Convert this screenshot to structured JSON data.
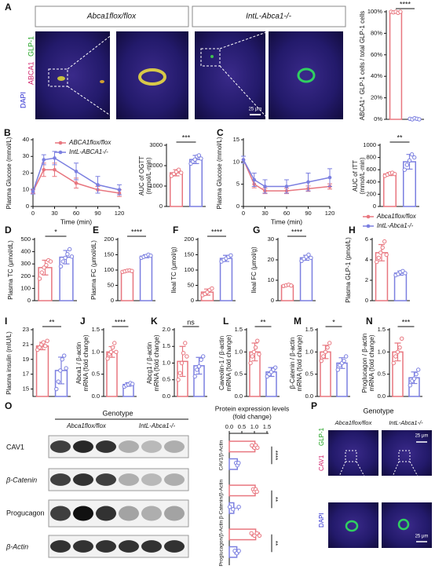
{
  "figure": {
    "panel_labels": [
      "A",
      "O",
      "P"
    ],
    "a_headers": [
      "Abca1flox/flox",
      "IntL-Abca1-/-"
    ],
    "a_stain": [
      "DAPI",
      "ABCA1",
      "GLP-1"
    ],
    "a_scale": "25 μm",
    "o_genotype": "Genotype",
    "o_groups": [
      "Abca1flox/flox",
      "IntL-Abca1-/-"
    ],
    "o_bands": [
      "CAV1",
      "β-Catenin",
      "Progucagon",
      "β-Actin"
    ],
    "p_genotype": "Genotype",
    "p_groups": [
      "Abca1flox/flox",
      "IntL-Abca1-/-"
    ],
    "p_stain_top": [
      "CAV1",
      "GLP-1"
    ],
    "p_stain_bottom": [
      "DAPI"
    ],
    "p_scale": [
      "25 μm",
      "25 μm"
    ]
  },
  "chart_data": [
    {
      "type": "bar",
      "ylabel": [
        "ABCA1⁺ GLP-1 cells / total GLP-1 cells"
      ],
      "colors": [
        "#e8767f",
        "#7b7fe0"
      ],
      "values": [
        100,
        0.5
      ],
      "errors": [
        0.5,
        0.3
      ],
      "points": [
        [
          100,
          99.5,
          100,
          99,
          100
        ],
        [
          0.5,
          0,
          1,
          0.5,
          0
        ]
      ],
      "ylim": [
        0,
        100
      ],
      "yticks": [
        {
          "value": 0,
          "label": "0%"
        },
        {
          "value": 20,
          "label": "20%"
        },
        {
          "value": 40,
          "label": "40%"
        },
        {
          "value": 60,
          "label": "60%"
        },
        {
          "value": 80,
          "label": "80%"
        },
        {
          "value": 100,
          "label": "100%"
        }
      ],
      "significance": "****"
    },
    {
      "type": "line",
      "label": "B",
      "ylabel": [
        "Plasma Glucose (mmol/L)"
      ],
      "xlabel": "Time (min)",
      "legend": "upper center",
      "x": [
        0,
        15,
        30,
        60,
        90,
        120
      ],
      "xlim": [
        0,
        120
      ],
      "xticks": [
        0,
        30,
        60,
        90,
        120
      ],
      "ylim": [
        0,
        40
      ],
      "yticks": [
        0,
        10,
        20,
        30,
        40
      ],
      "series": [
        {
          "name": "ABCA1flox/flox",
          "color": "#e8767f",
          "values": [
            9,
            22,
            22,
            14,
            10,
            8
          ],
          "errors": [
            1,
            4,
            4,
            3,
            2,
            2
          ]
        },
        {
          "name": "IntL-ABCA1-/-",
          "color": "#7b7fe0",
          "values": [
            9,
            28,
            29,
            21,
            13,
            10
          ],
          "errors": [
            1.5,
            3,
            4,
            5,
            5,
            3
          ]
        }
      ]
    },
    {
      "type": "bar",
      "ylabel": [
        "AUC of OGTT",
        "(mmol/L·min)"
      ],
      "colors": [
        "#e8767f",
        "#7b7fe0"
      ],
      "values": [
        1650,
        2300
      ],
      "errors": [
        150,
        200
      ],
      "points": [
        [
          1500,
          1600,
          1700,
          1800,
          1650
        ],
        [
          2100,
          2200,
          2300,
          2450,
          2500,
          2350
        ]
      ],
      "ylim": [
        0,
        3000
      ],
      "yticks": [
        0,
        1000,
        2000,
        3000
      ],
      "significance": "***"
    },
    {
      "type": "line",
      "label": "C",
      "ylabel": [
        "Plasma Glucose (mmol/L)"
      ],
      "xlabel": "Time (min)",
      "legend": "lower right outside",
      "x": [
        0,
        15,
        30,
        60,
        90,
        120
      ],
      "xlim": [
        0,
        120
      ],
      "xticks": [
        0,
        30,
        60,
        90,
        120
      ],
      "ylim": [
        0,
        15
      ],
      "yticks": [
        0,
        5,
        10,
        15
      ],
      "series": [
        {
          "name": "Abca1flox/flox",
          "color": "#e8767f",
          "values": [
            10.5,
            5,
            3.5,
            3.5,
            4,
            4.5
          ],
          "errors": [
            0.8,
            0.8,
            0.6,
            0.6,
            0.6,
            0.6
          ]
        },
        {
          "name": "IntL-Abca1-/-",
          "color": "#7b7fe0",
          "values": [
            10.5,
            6,
            4.5,
            4.5,
            5.5,
            6.5
          ],
          "errors": [
            0.8,
            1.5,
            1.5,
            1.5,
            2,
            2
          ]
        }
      ]
    },
    {
      "type": "bar",
      "ylabel": [
        "AUC of ITT",
        "(mmol/L·min)"
      ],
      "colors": [
        "#e8767f",
        "#7b7fe0"
      ],
      "values": [
        530,
        730
      ],
      "errors": [
        25,
        120
      ],
      "points": [
        [
          500,
          520,
          540,
          550,
          530
        ],
        [
          600,
          680,
          750,
          850,
          800
        ]
      ],
      "ylim": [
        0,
        1000
      ],
      "yticks": [
        0,
        200,
        400,
        600,
        800,
        1000
      ],
      "significance": "**"
    },
    {
      "type": "bar",
      "label": "D",
      "ylabel": [
        "Plasma TC (μmol/dL)"
      ],
      "colors": [
        "#e8767f",
        "#7b7fe0"
      ],
      "values": [
        270,
        355
      ],
      "errors": [
        60,
        55
      ],
      "points": [
        [
          180,
          230,
          270,
          290,
          330,
          320
        ],
        [
          280,
          320,
          350,
          380,
          420,
          360
        ]
      ],
      "ylim": [
        0,
        500
      ],
      "yticks": [
        0,
        100,
        200,
        300,
        400,
        500
      ],
      "significance": "*"
    },
    {
      "type": "bar",
      "label": "E",
      "ylabel": [
        "Plasma FC (μmol/dL)"
      ],
      "colors": [
        "#e8767f",
        "#7b7fe0"
      ],
      "values": [
        97,
        145
      ],
      "errors": [
        3,
        5
      ],
      "points": [
        [
          94,
          96,
          98,
          99,
          97
        ],
        [
          140,
          143,
          146,
          150,
          147
        ]
      ],
      "ylim": [
        0,
        200
      ],
      "yticks": [
        0,
        50,
        100,
        150,
        200
      ],
      "significance": "****"
    },
    {
      "type": "bar",
      "label": "F",
      "ylabel": [
        "Ileal TC (μmol/g)"
      ],
      "colors": [
        "#e8767f",
        "#7b7fe0"
      ],
      "values": [
        28,
        138
      ],
      "errors": [
        10,
        10
      ],
      "points": [
        [
          18,
          22,
          28,
          35,
          40
        ],
        [
          128,
          133,
          138,
          143,
          148
        ]
      ],
      "ylim": [
        0,
        200
      ],
      "yticks": [
        0,
        50,
        100,
        150,
        200
      ],
      "significance": "****"
    },
    {
      "type": "bar",
      "label": "G",
      "ylabel": [
        "Ileal FC (μmol/g)"
      ],
      "colors": [
        "#e8767f",
        "#7b7fe0"
      ],
      "values": [
        7.5,
        21
      ],
      "errors": [
        0.4,
        1.2
      ],
      "points": [
        [
          7.2,
          7.5,
          7.8,
          7.4
        ],
        [
          19.5,
          20.5,
          21.5,
          22.5,
          21
        ]
      ],
      "ylim": [
        0,
        30
      ],
      "yticks": [
        0,
        10,
        20,
        30
      ],
      "significance": "****"
    },
    {
      "type": "bar",
      "label": "H",
      "ylabel": [
        "Plasma GLP-1 (pmol/L)"
      ],
      "colors": [
        "#e8767f",
        "#7b7fe0"
      ],
      "values": [
        4.7,
        2.7
      ],
      "errors": [
        0.8,
        0.2
      ],
      "points": [
        [
          3.8,
          4.2,
          4.7,
          5.2,
          5.8,
          4.5
        ],
        [
          2.5,
          2.6,
          2.8,
          2.9,
          2.7
        ]
      ],
      "ylim": [
        0,
        6
      ],
      "yticks": [
        0,
        2,
        4,
        6
      ]
    },
    {
      "type": "bar",
      "label": "I",
      "ylabel": [
        "Plasma insulin (mIU/L)"
      ],
      "colors": [
        "#e8767f",
        "#7b7fe0"
      ],
      "values": [
        20.8,
        17.5
      ],
      "errors": [
        0.5,
        1.8
      ],
      "points": [
        [
          20.3,
          20.6,
          21,
          21.3,
          20.8,
          21.5
        ],
        [
          15,
          16,
          17.5,
          19,
          19.5,
          17.8
        ]
      ],
      "ylim": [
        14,
        23
      ],
      "yticks": [
        15,
        17,
        19,
        21,
        23
      ],
      "significance": "**"
    },
    {
      "type": "bar",
      "label": "J",
      "ylabel": [
        "Abca1 / β-actin",
        "mRNA (fold change)"
      ],
      "colors": [
        "#e8767f",
        "#7b7fe0"
      ],
      "values": [
        1.0,
        0.27
      ],
      "errors": [
        0.12,
        0.04
      ],
      "points": [
        [
          0.85,
          0.95,
          1.0,
          1.1,
          1.2,
          1.0
        ],
        [
          0.22,
          0.25,
          0.27,
          0.3,
          0.28
        ]
      ],
      "ylim": [
        0,
        1.5
      ],
      "yticks": [
        {
          "value": 0,
          "label": "0.0"
        },
        0.5,
        {
          "value": 1,
          "label": "1.0"
        },
        1.5
      ],
      "significance": "****"
    },
    {
      "type": "bar",
      "label": "K",
      "ylabel": [
        "Abcg1 / β-actin",
        "mRNA (fold change)"
      ],
      "colors": [
        "#e8767f",
        "#7b7fe0"
      ],
      "values": [
        1.05,
        0.92
      ],
      "errors": [
        0.45,
        0.25
      ],
      "points": [
        [
          0.5,
          0.7,
          1.0,
          1.3,
          1.6,
          1.2
        ],
        [
          0.6,
          0.8,
          0.9,
          1.1,
          1.2
        ]
      ],
      "ylim": [
        0,
        2
      ],
      "yticks": [
        {
          "value": 0,
          "label": "0.0"
        },
        0.5,
        {
          "value": 1,
          "label": "1.0"
        },
        1.5,
        {
          "value": 2,
          "label": "2.0"
        }
      ],
      "significance": "ns"
    },
    {
      "type": "bar",
      "label": "L",
      "ylabel": [
        "Caveolin-1 / β-actin",
        "mRNA (fold change)"
      ],
      "colors": [
        "#e8767f",
        "#7b7fe0"
      ],
      "values": [
        1.0,
        0.55
      ],
      "errors": [
        0.2,
        0.1
      ],
      "points": [
        [
          0.75,
          0.9,
          1.0,
          1.1,
          1.25,
          0.95
        ],
        [
          0.45,
          0.5,
          0.55,
          0.6,
          0.65
        ]
      ],
      "ylim": [
        0,
        1.5
      ],
      "yticks": [
        {
          "value": 0,
          "label": "0.0"
        },
        0.5,
        {
          "value": 1,
          "label": "1.0"
        },
        1.5
      ],
      "significance": "**"
    },
    {
      "type": "bar",
      "label": "M",
      "ylabel": [
        "β-Catenin / β-actin",
        "mRNA (fold change)"
      ],
      "colors": [
        "#e8767f",
        "#7b7fe0"
      ],
      "values": [
        1.0,
        0.75
      ],
      "errors": [
        0.15,
        0.12
      ],
      "points": [
        [
          0.8,
          0.9,
          1.0,
          1.1,
          1.2
        ],
        [
          0.6,
          0.7,
          0.75,
          0.8,
          0.9
        ]
      ],
      "ylim": [
        0,
        1.5
      ],
      "yticks": [
        {
          "value": 0,
          "label": "0.0"
        },
        0.5,
        {
          "value": 1,
          "label": "1.0"
        },
        1.5
      ],
      "significance": "*"
    },
    {
      "type": "bar",
      "label": "N",
      "ylabel": [
        "Proglucagon / β-actin",
        "mRNA (fold change)"
      ],
      "colors": [
        "#e8767f",
        "#7b7fe0"
      ],
      "values": [
        1.0,
        0.42
      ],
      "errors": [
        0.2,
        0.13
      ],
      "points": [
        [
          0.75,
          0.9,
          1.0,
          1.1,
          1.3
        ],
        [
          0.25,
          0.35,
          0.4,
          0.5,
          0.6
        ]
      ],
      "ylim": [
        0,
        1.5
      ],
      "yticks": [
        {
          "value": 0,
          "label": "0.0"
        },
        0.5,
        {
          "value": 1,
          "label": "1.0"
        },
        1.5
      ],
      "significance": "***"
    },
    {
      "type": "hbar",
      "title": [
        "Protein expression levels",
        "(fold change)"
      ],
      "categories": [
        "CAV1/β-Actin",
        "β-Catenin/β-Actin",
        "Proglucagon/β-Actin"
      ],
      "xlim": [
        0,
        1.5
      ],
      "xticks": [
        {
          "value": 0,
          "label": "0.0"
        },
        0.5,
        {
          "value": 1,
          "label": "1.0"
        },
        1.5
      ],
      "series": [
        {
          "color": "#e8767f",
          "values": [
            1.02,
            1.03,
            1.05
          ],
          "errors": [
            0.1,
            0.08,
            0.15
          ],
          "points": [
            [
              0.9,
              1.0,
              1.05,
              1.12
            ],
            [
              0.95,
              1.0,
              1.05,
              1.1
            ],
            [
              0.88,
              1.0,
              1.1,
              1.2
            ]
          ]
        },
        {
          "color": "#7b7fe0",
          "values": [
            0.32,
            0.18,
            0.3
          ],
          "errors": [
            0.05,
            0.18,
            0.08
          ],
          "points": [
            [
              0.27,
              0.32,
              0.37
            ],
            [
              0.02,
              0.15,
              0.38
            ],
            [
              0.22,
              0.3,
              0.38
            ]
          ]
        }
      ],
      "significance": [
        "****",
        "**",
        "**"
      ]
    }
  ]
}
